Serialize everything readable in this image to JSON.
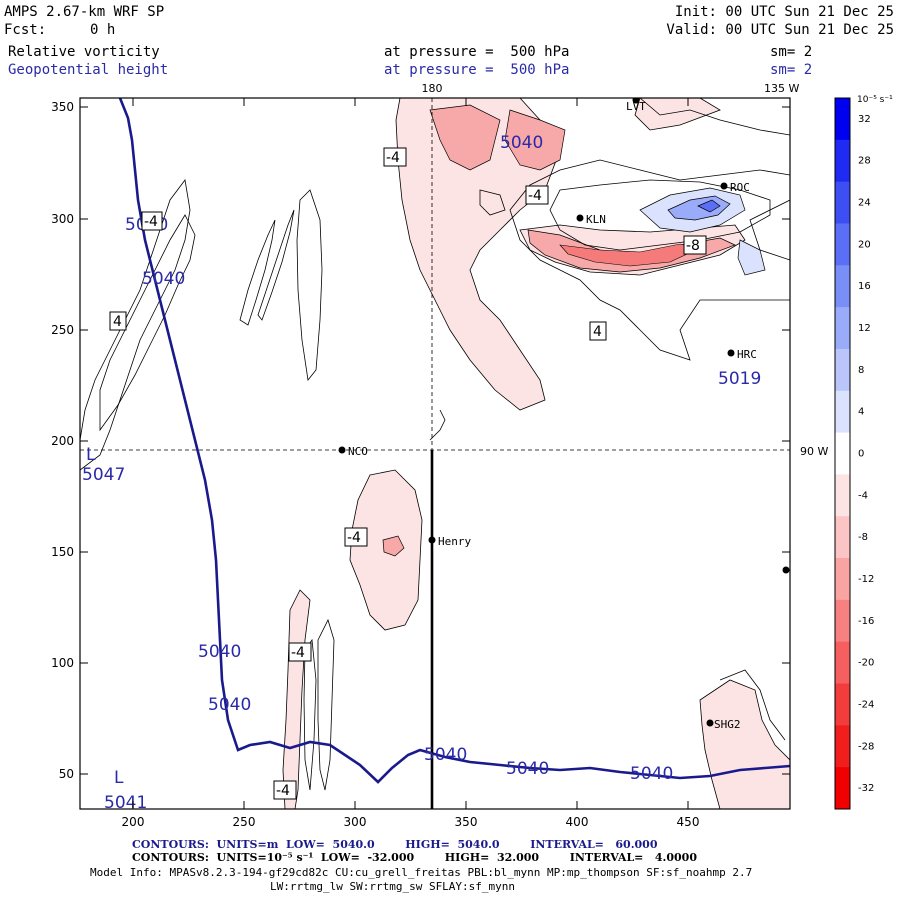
{
  "header": {
    "model": "AMPS 2.67-km WRF SP",
    "fcst_label": "Fcst:",
    "fcst_value": "0 h",
    "init": "Init: 00 UTC Sun 21 Dec 25",
    "valid": "Valid: 00 UTC Sun 21 Dec 25",
    "field1_name": "Relative vorticity",
    "field1_level": "at pressure =  500 hPa",
    "field1_sm": "sm= 2",
    "field2_name": "Geopotential height",
    "field2_level": "at pressure =  500 hPa",
    "field2_sm": "sm= 2"
  },
  "map": {
    "x_ticks": [
      "200",
      "250",
      "300",
      "350",
      "400",
      "450"
    ],
    "y_ticks": [
      "350",
      "300",
      "250",
      "200",
      "150",
      "100",
      "50"
    ],
    "lon_labels": {
      "top_180": "180",
      "top_135w": "135 W",
      "right_90w": "90 W"
    },
    "stations": [
      {
        "id": "lvt",
        "label": "LVT"
      },
      {
        "id": "roc",
        "label": "ROC"
      },
      {
        "id": "kln",
        "label": "KLN"
      },
      {
        "id": "hrc",
        "label": "HRC"
      },
      {
        "id": "nco",
        "label": "NCO"
      },
      {
        "id": "henry",
        "label": "Henry"
      },
      {
        "id": "shg2",
        "label": "SHG2"
      }
    ],
    "height_labels": [
      "5040",
      "5040",
      "5040",
      "5040",
      "5040",
      "5040",
      "5040",
      "5040",
      "5019",
      "5047",
      "5041"
    ],
    "low_markers": [
      "L",
      "L"
    ],
    "vort_labels": [
      "-4",
      "-4",
      "-4",
      "-4",
      "-4",
      "-4",
      "-8",
      "4",
      "4"
    ]
  },
  "colorbar": {
    "unit_label": "10⁻⁵ s⁻¹",
    "ticks": [
      "32",
      "28",
      "24",
      "20",
      "16",
      "12",
      "8",
      "4",
      "0",
      "-4",
      "-8",
      "-12",
      "-16",
      "-20",
      "-24",
      "-28",
      "-32"
    ],
    "colors": [
      "#0000f0",
      "#1f2af2",
      "#3d4ff3",
      "#5a6ff5",
      "#7a8ef7",
      "#9aabf9",
      "#bac6fb",
      "#dbe2fd",
      "#ffffff",
      "#fde4e4",
      "#fbc5c5",
      "#f9a3a3",
      "#f78181",
      "#f55f5f",
      "#f33c3c",
      "#f11e1e",
      "#f00000"
    ]
  },
  "footer": {
    "line1": "CONTOURS:  UNITS=m  LOW=  5040.0        HIGH=  5040.0        INTERVAL=   60.000",
    "line2": "CONTOURS:  UNITS=10⁻⁵ s⁻¹  LOW=  -32.000        HIGH=  32.000        INTERVAL=   4.0000",
    "line3": "Model Info: MPASv8.2.3-194-gf29cd82c CU:cu_grell_freitas PBL:bl_mynn MP:mp_thompson SF:sf_noahmp 2.7",
    "line4": "LW:rrtmg_lw SW:rrtmg_sw SFLAY:sf_mynn"
  }
}
